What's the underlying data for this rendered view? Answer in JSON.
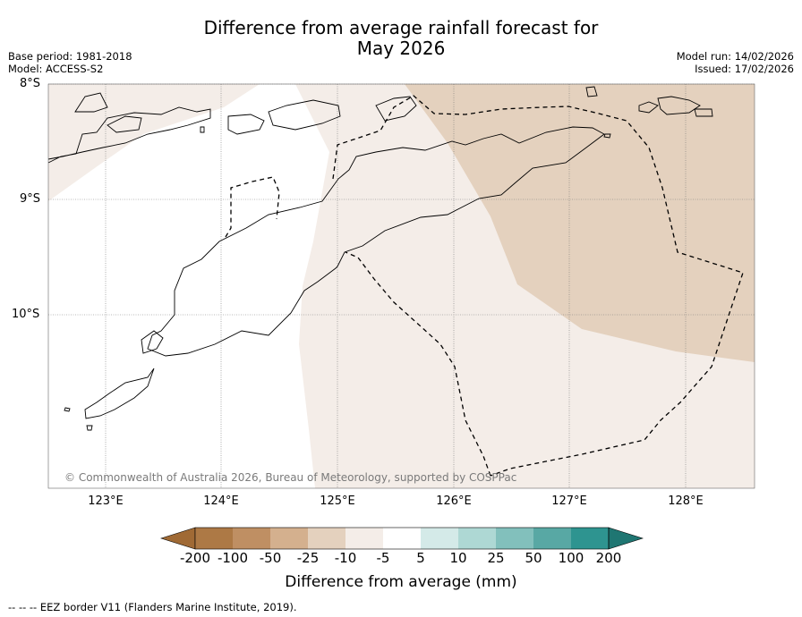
{
  "title_line1": "Difference from average rainfall forecast for",
  "title_line2": "May 2026",
  "meta_left": {
    "base_period": "Base period: 1981-2018",
    "model": "Model: ACCESS-S2"
  },
  "meta_right": {
    "model_run": "Model run: 14/02/2026",
    "issued": "Issued: 17/02/2026"
  },
  "lat_labels": [
    "8°S",
    "9°S",
    "10°S"
  ],
  "lon_labels": [
    "123°E",
    "124°E",
    "125°E",
    "126°E",
    "127°E",
    "128°E"
  ],
  "copyright": "© Commonwealth of Australia 2026, Bureau of Meteorology, supported by COSPPac",
  "colorbar": {
    "ticks": [
      "-200",
      "-100",
      "-50",
      "-25",
      "-10",
      "-5",
      "5",
      "10",
      "25",
      "50",
      "100",
      "200"
    ],
    "colors": [
      "#a06a35",
      "#ad7945",
      "#bf8f63",
      "#d4b08e",
      "#e4d1be",
      "#f4ede8",
      "#ffffff",
      "#d4eae8",
      "#aed8d4",
      "#82c0bc",
      "#58a8a4",
      "#2e9490",
      "#1f7672"
    ],
    "label": "Difference from average (mm)"
  },
  "legend_note": "--  --  -- EEZ border V11 (Flanders Marine Institute, 2019)."
}
